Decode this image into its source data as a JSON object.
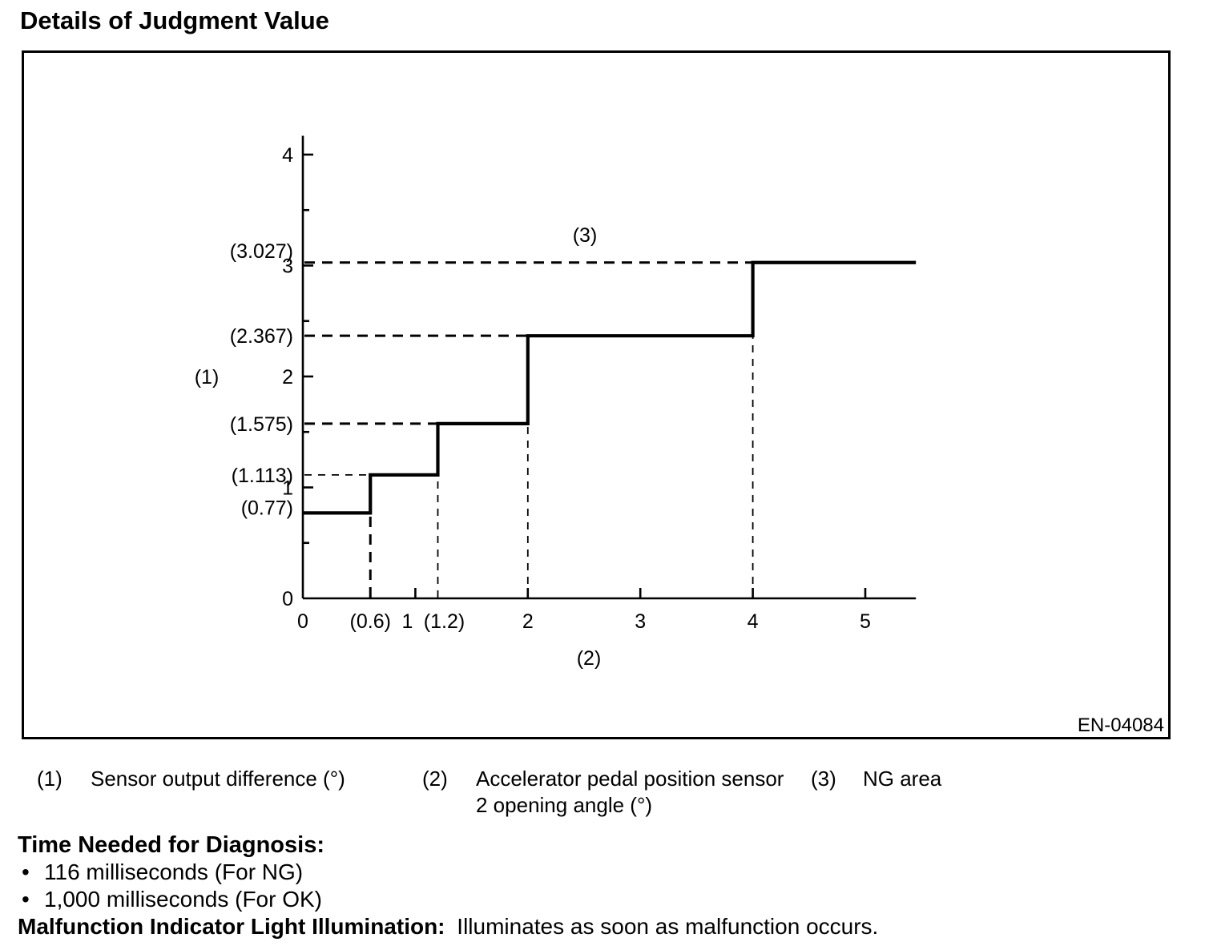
{
  "title": "Details of Judgment Value",
  "figure": {
    "code": "EN-04084"
  },
  "chart_data": {
    "type": "line",
    "subtype": "step",
    "title": "",
    "xlabel_ref": "(2)",
    "ylabel_ref": "(1)",
    "ng_area_ref": "(3)",
    "x_range": [
      0,
      5.45
    ],
    "y_range": [
      0,
      4.17
    ],
    "grid": false,
    "steps": [
      {
        "x_from": 0,
        "x_to": 0.6,
        "y": 0.77
      },
      {
        "x_from": 0.6,
        "x_to": 1.2,
        "y": 1.113
      },
      {
        "x_from": 1.2,
        "x_to": 2,
        "y": 1.575
      },
      {
        "x_from": 2,
        "x_to": 4,
        "y": 2.367
      },
      {
        "x_from": 4,
        "x_to": 5.45,
        "y": 3.027
      }
    ],
    "x_ticks": [
      {
        "value": 0,
        "label": "0",
        "tick": false
      },
      {
        "value": 0.6,
        "label": "(0.6)",
        "tick": false,
        "dash_to_y": 0.77,
        "dash": "heavy"
      },
      {
        "value": 1,
        "label": "1",
        "tick": true,
        "dx": -10
      },
      {
        "value": 1.2,
        "label": "(1.2)",
        "tick": false,
        "dash_to_y": 1.113,
        "dash": "light",
        "dx": 8
      },
      {
        "value": 2,
        "label": "2",
        "tick": true,
        "dash_to_y": 1.575,
        "dash": "light"
      },
      {
        "value": 3,
        "label": "3",
        "tick": true
      },
      {
        "value": 4,
        "label": "4",
        "tick": true,
        "dash_to_y": 2.367,
        "dash": "light"
      },
      {
        "value": 5,
        "label": "5",
        "tick": true
      }
    ],
    "y_ticks": [
      {
        "value": 0,
        "label": "0",
        "tick": false
      },
      {
        "value": 0.77,
        "label": "(0.77)",
        "tick": false,
        "dy": -7
      },
      {
        "value": 1,
        "label": "1",
        "tick": true
      },
      {
        "value": 1.113,
        "label": "(1.113)",
        "tick": false,
        "dash_to_x": 0.6,
        "dash": "light"
      },
      {
        "value": 1.575,
        "label": "(1.575)",
        "tick": false,
        "dash_to_x": 1.2,
        "dash": "heavy"
      },
      {
        "value": 2,
        "label": "2",
        "tick": true
      },
      {
        "value": 2.367,
        "label": "(2.367)",
        "tick": false,
        "dash_to_x": 2,
        "dash": "heavy"
      },
      {
        "value": 3,
        "label": "3",
        "tick": true
      },
      {
        "value": 3.027,
        "label": "(3.027)",
        "tick": false,
        "dash_to_x": 4,
        "dash": "heavy",
        "dy": -15
      },
      {
        "value": 4,
        "label": "4",
        "tick": true
      }
    ],
    "y_minor_ticks": [
      0.5,
      1.5,
      2.5,
      3.5
    ]
  },
  "legend": {
    "items": [
      {
        "ref": "(1)",
        "lines": [
          "Sensor output difference (°)"
        ]
      },
      {
        "ref": "(2)",
        "lines": [
          "Accelerator pedal position sensor",
          "2 opening angle (°)"
        ]
      },
      {
        "ref": "(3)",
        "lines": [
          "NG area"
        ]
      }
    ]
  },
  "notes": {
    "diagnosis_heading": "Time Needed for Diagnosis:",
    "bullets": [
      "116 milliseconds (For NG)",
      "1,000 milliseconds (For OK)"
    ],
    "mil_heading": "Malfunction Indicator Light Illumination:",
    "mil_text": "Illuminates as soon as malfunction occurs."
  }
}
